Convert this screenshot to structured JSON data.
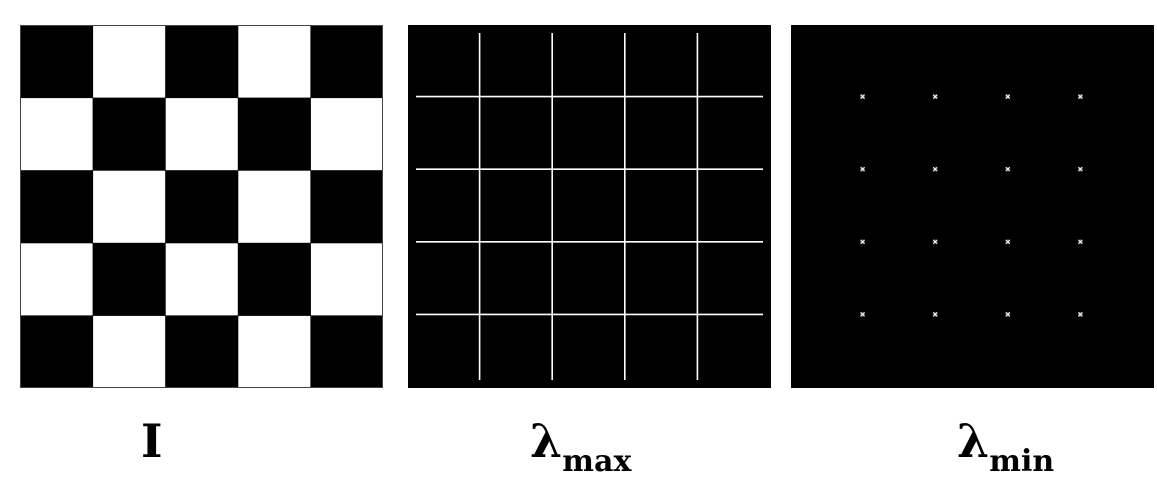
{
  "captions": {
    "input": {
      "symbol": "I",
      "subscript": ""
    },
    "max": {
      "symbol": "λ",
      "subscript": "max"
    },
    "min": {
      "symbol": "λ",
      "subscript": "min"
    }
  },
  "checkerboard": {
    "rows": 5,
    "cols": 5,
    "top_left": "black"
  },
  "grid": {
    "cells": 5
  },
  "colors": {
    "background": "#000000",
    "foreground": "#ffffff",
    "frame": "#444444"
  }
}
